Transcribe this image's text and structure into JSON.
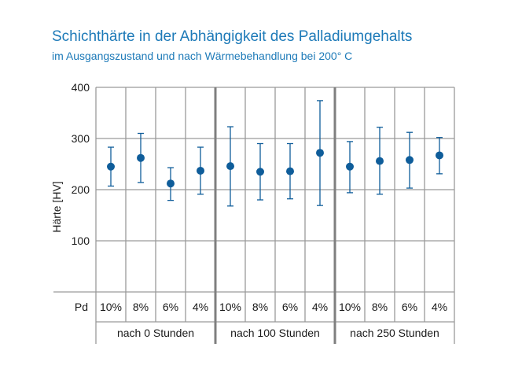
{
  "title": "Schichthärte in der Abhängigkeit des Palladiumgehalts",
  "subtitle": "im Ausgangszustand und nach Wärmebehandlung bei 200° C",
  "colors": {
    "accent": "#1d7ab8",
    "marker": "#0f5d9a",
    "grid": "#9a9a9a",
    "separator": "#7f7f7f"
  },
  "chart_data": {
    "type": "scatter",
    "ylabel": "Härte [HV]",
    "ylim": [
      0,
      400
    ],
    "yticks": [
      100,
      200,
      300,
      400
    ],
    "grid": true,
    "row_label": "Pd",
    "categories": [
      "10%",
      "8%",
      "6%",
      "4%",
      "10%",
      "8%",
      "6%",
      "4%",
      "10%",
      "8%",
      "6%",
      "4%"
    ],
    "groups": [
      {
        "label": "nach 0 Stunden",
        "categories": [
          "10%",
          "8%",
          "6%",
          "4%"
        ]
      },
      {
        "label": "nach 100 Stunden",
        "categories": [
          "10%",
          "8%",
          "6%",
          "4%"
        ]
      },
      {
        "label": "nach 250 Stunden",
        "categories": [
          "10%",
          "8%",
          "6%",
          "4%"
        ]
      }
    ],
    "series": [
      {
        "values": [
          245,
          262,
          212,
          237,
          246,
          235,
          236,
          272,
          245,
          256,
          258,
          267
        ],
        "error_low": [
          207,
          214,
          179,
          191,
          168,
          180,
          182,
          169,
          194,
          191,
          203,
          231
        ],
        "error_high": [
          283,
          310,
          243,
          283,
          323,
          290,
          290,
          374,
          294,
          322,
          312,
          302
        ]
      }
    ]
  }
}
